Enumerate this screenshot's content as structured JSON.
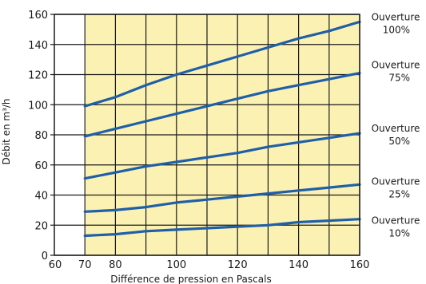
{
  "chart_data": {
    "type": "line",
    "title": "",
    "xlabel": "Différence de pression en Pascals",
    "ylabel": "Débit en m³/h",
    "xlim": [
      60,
      160
    ],
    "ylim": [
      0,
      160
    ],
    "x_ticks": [
      60,
      70,
      80,
      100,
      120,
      140,
      160
    ],
    "y_ticks": [
      0,
      20,
      40,
      60,
      80,
      100,
      120,
      140,
      160
    ],
    "shaded_region": {
      "x_from": 70,
      "x_to": 160,
      "color": "#fbf1b3"
    },
    "grid": true,
    "line_color": "#1f5fa8",
    "series": [
      {
        "name": "Ouverture 100%",
        "label_lines": [
          "Ouverture",
          "100%"
        ],
        "x": [
          70,
          80,
          90,
          100,
          110,
          120,
          130,
          140,
          150,
          160
        ],
        "y": [
          99,
          105,
          113,
          120,
          126,
          132,
          138,
          144,
          149,
          155
        ]
      },
      {
        "name": "Ouverture 75%",
        "label_lines": [
          "Ouverture",
          "75%"
        ],
        "x": [
          70,
          80,
          90,
          100,
          110,
          120,
          130,
          140,
          150,
          160
        ],
        "y": [
          79,
          84,
          89,
          94,
          99,
          104,
          109,
          113,
          117,
          121
        ]
      },
      {
        "name": "Ouverture 50%",
        "label_lines": [
          "Ouverture",
          "50%"
        ],
        "x": [
          70,
          80,
          90,
          100,
          110,
          120,
          130,
          140,
          150,
          160
        ],
        "y": [
          51,
          55,
          59,
          62,
          65,
          68,
          72,
          75,
          78,
          81
        ]
      },
      {
        "name": "Ouverture 25%",
        "label_lines": [
          "Ouverture",
          "25%"
        ],
        "x": [
          70,
          80,
          90,
          100,
          110,
          120,
          130,
          140,
          150,
          160
        ],
        "y": [
          29,
          30,
          32,
          35,
          37,
          39,
          41,
          43,
          45,
          47
        ]
      },
      {
        "name": "Ouverture 10%",
        "label_lines": [
          "Ouverture",
          "10%"
        ],
        "x": [
          70,
          80,
          90,
          100,
          110,
          120,
          130,
          140,
          150,
          160
        ],
        "y": [
          13,
          14,
          16,
          17,
          18,
          19,
          20,
          22,
          23,
          24
        ]
      }
    ]
  }
}
